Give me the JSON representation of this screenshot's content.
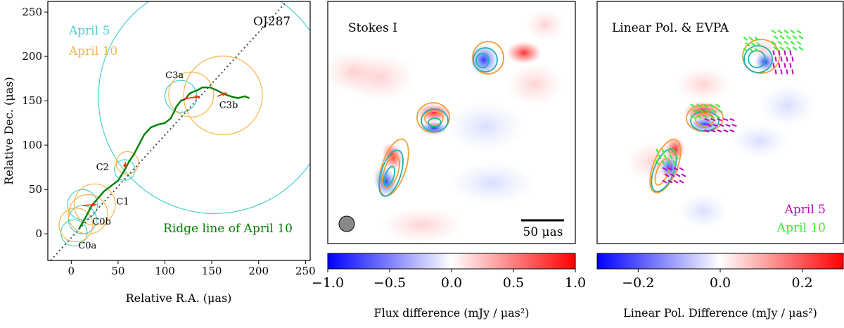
{
  "chart_data": [
    {
      "type": "scatter",
      "title": "OJ287",
      "xlabel": "Relative R.A. (μas)",
      "ylabel": "Relative Dec. (μas)",
      "xlim": [
        -25,
        255
      ],
      "ylim": [
        -30,
        262
      ],
      "xticks": [
        "0",
        "50",
        "100",
        "150",
        "200",
        "250"
      ],
      "yticks": [
        "0",
        "50",
        "100",
        "150",
        "200",
        "250"
      ],
      "legend": [
        "April 5",
        "April 10"
      ],
      "colors": {
        "april5": "#48d1cc",
        "april10": "#f4b547",
        "ridge": "#008000",
        "arrow": "#ff3300",
        "diag": "#444444"
      },
      "ridge_label": "Ridge line of April 10",
      "components": [
        {
          "name": "C0a",
          "x": 3,
          "y": 1
        },
        {
          "name": "C0b",
          "x": 12,
          "y": 16
        },
        {
          "name": "C1",
          "x": 18,
          "y": 33
        },
        {
          "name": "C2",
          "x": 55,
          "y": 75
        },
        {
          "name": "C3a",
          "x": 117,
          "y": 155
        },
        {
          "name": "C3b",
          "x": 152,
          "y": 153
        }
      ],
      "circles_april5": [
        [
          3,
          1,
          14
        ],
        [
          12,
          16,
          15
        ],
        [
          12,
          33,
          16
        ],
        [
          57,
          72,
          11
        ],
        [
          117,
          155,
          17
        ],
        [
          153,
          154,
          124
        ]
      ],
      "circles_april10": [
        [
          5,
          10,
          18
        ],
        [
          18,
          22,
          21
        ],
        [
          25,
          33,
          22
        ],
        [
          60,
          80,
          12
        ],
        [
          128,
          157,
          24
        ],
        [
          162,
          156,
          42
        ]
      ],
      "arrows": [
        [
          12,
          32,
          27,
          33
        ],
        [
          57,
          75,
          58,
          81
        ],
        [
          120,
          152,
          137,
          155
        ],
        [
          156,
          155,
          166,
          159
        ]
      ],
      "ridge_line": [
        [
          8,
          5
        ],
        [
          15,
          18
        ],
        [
          22,
          32
        ],
        [
          35,
          48
        ],
        [
          50,
          60
        ],
        [
          57,
          72
        ],
        [
          62,
          82
        ],
        [
          67,
          90
        ],
        [
          72,
          100
        ],
        [
          78,
          112
        ],
        [
          85,
          120
        ],
        [
          92,
          123
        ],
        [
          100,
          125
        ],
        [
          106,
          130
        ],
        [
          110,
          138
        ],
        [
          112,
          143
        ],
        [
          117,
          150
        ],
        [
          122,
          152
        ],
        [
          126,
          158
        ],
        [
          130,
          160
        ],
        [
          135,
          162
        ],
        [
          140,
          165
        ],
        [
          148,
          165
        ],
        [
          155,
          162
        ],
        [
          162,
          158
        ],
        [
          170,
          155
        ],
        [
          178,
          153
        ],
        [
          185,
          155
        ],
        [
          190,
          153
        ]
      ],
      "diagonal": [
        [
          -22,
          -30
        ],
        [
          230,
          262
        ]
      ]
    },
    {
      "type": "heatmap",
      "title": "Stokes I",
      "scalebar": "50 μas",
      "colorbar_label": "Flux difference (mJy / μas²)",
      "colorbar_range": [
        -1.0,
        1.0
      ],
      "colorbar_ticks": [
        "−1.0",
        "−0.5",
        "0.0",
        "0.5",
        "1.0"
      ]
    },
    {
      "type": "heatmap",
      "title": "Linear Pol. & EVPA",
      "legend": [
        "April 5",
        "April 10"
      ],
      "legend_colors": [
        "#c000c0",
        "#33ee33"
      ],
      "colorbar_label": "Linear Pol. Difference (mJy / μas²)",
      "colorbar_range": [
        -0.3,
        0.3
      ],
      "colorbar_ticks": [
        "−0.2",
        "0.0",
        "0.2"
      ]
    }
  ]
}
